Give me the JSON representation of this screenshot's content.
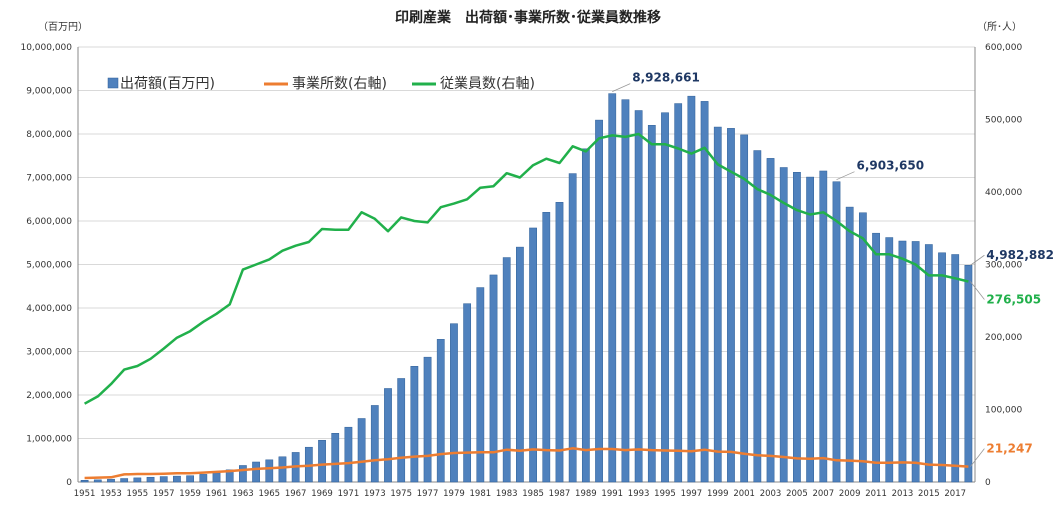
{
  "chart_data": {
    "type": "bar",
    "title": "印刷産業　出荷額･事業所数･従業員数推移",
    "y_left_unit": "（百万円）",
    "y_right_unit": "（所･人）",
    "y_left": {
      "min": 0,
      "max": 10000000,
      "step": 1000000
    },
    "y_right": {
      "min": 0,
      "max": 600000,
      "step": 100000
    },
    "x_tick_labels": [
      "1951",
      "1953",
      "1955",
      "1957",
      "1959",
      "1961",
      "1963",
      "1965",
      "1967",
      "1969",
      "1971",
      "1973",
      "1975",
      "1977",
      "1979",
      "1981",
      "1983",
      "1985",
      "1987",
      "1989",
      "1991",
      "1993",
      "1995",
      "1997",
      "1999",
      "2001",
      "2003",
      "2005",
      "2007",
      "2009",
      "2011",
      "2013",
      "2015",
      "2017"
    ],
    "x": [
      1951,
      1952,
      1953,
      1954,
      1955,
      1956,
      1957,
      1958,
      1959,
      1960,
      1961,
      1962,
      1963,
      1964,
      1965,
      1966,
      1967,
      1968,
      1969,
      1970,
      1971,
      1972,
      1973,
      1974,
      1975,
      1976,
      1977,
      1978,
      1979,
      1980,
      1981,
      1982,
      1983,
      1984,
      1985,
      1986,
      1987,
      1988,
      1989,
      1990,
      1991,
      1992,
      1993,
      1994,
      1995,
      1996,
      1997,
      1998,
      1999,
      2000,
      2001,
      2002,
      2003,
      2004,
      2005,
      2006,
      2007,
      2008,
      2009,
      2010,
      2011,
      2012,
      2013,
      2014,
      2015,
      2016,
      2017,
      2018
    ],
    "legend_placement": "top-left",
    "series": [
      {
        "name": "出荷額(百万円)",
        "kind": "bar",
        "axis": "left",
        "color": "#4f81bd",
        "values": [
          40000,
          50000,
          65000,
          80000,
          95000,
          110000,
          125000,
          135000,
          145000,
          175000,
          210000,
          280000,
          380000,
          460000,
          510000,
          580000,
          680000,
          800000,
          960000,
          1120000,
          1260000,
          1460000,
          1760000,
          2150000,
          2380000,
          2660000,
          2870000,
          3280000,
          3640000,
          4100000,
          4470000,
          4760000,
          5160000,
          5400000,
          5840000,
          6200000,
          6430000,
          7090000,
          7660000,
          8320000,
          8928661,
          8790000,
          8540000,
          8200000,
          8490000,
          8700000,
          8870000,
          8750000,
          8160000,
          8130000,
          7980000,
          7620000,
          7440000,
          7230000,
          7120000,
          7010000,
          7150000,
          6903650,
          6320000,
          6190000,
          5720000,
          5620000,
          5540000,
          5530000,
          5460000,
          5270000,
          5230000,
          4982882
        ]
      },
      {
        "name": "事業所数(右軸)",
        "kind": "line",
        "axis": "right",
        "color": "#ed7d31",
        "values": [
          5500,
          6000,
          6500,
          10500,
          11000,
          11000,
          11500,
          12000,
          12000,
          13000,
          14000,
          15000,
          16500,
          18000,
          19000,
          20000,
          21500,
          22500,
          24000,
          25000,
          26000,
          28000,
          30000,
          31500,
          33500,
          35000,
          36000,
          38500,
          40000,
          40500,
          41000,
          41000,
          44500,
          43000,
          45000,
          44000,
          43500,
          46500,
          44000,
          45500,
          45500,
          44000,
          45000,
          44000,
          43500,
          43000,
          42500,
          44500,
          42000,
          41500,
          39000,
          37000,
          36000,
          34500,
          32500,
          32000,
          33000,
          30000,
          29500,
          28500,
          26500,
          26500,
          27000,
          26500,
          24000,
          23500,
          22500,
          21247
        ]
      },
      {
        "name": "従業員数(右軸)",
        "kind": "line",
        "axis": "right",
        "color": "#21b04b",
        "values": [
          108000,
          118000,
          135000,
          155000,
          160000,
          170000,
          184000,
          199000,
          208000,
          221000,
          232000,
          245000,
          293000,
          300000,
          307000,
          319000,
          326000,
          331000,
          349000,
          348000,
          348000,
          372000,
          363000,
          346000,
          365000,
          360000,
          358000,
          379000,
          384000,
          390000,
          406000,
          408000,
          426000,
          420000,
          437000,
          446000,
          440000,
          463000,
          456000,
          474000,
          478000,
          476000,
          480000,
          466000,
          466000,
          460000,
          453000,
          461000,
          438000,
          428000,
          418000,
          404000,
          396000,
          385000,
          375000,
          369000,
          372000,
          360000,
          346000,
          336000,
          314000,
          314000,
          308000,
          300000,
          285000,
          285000,
          281000,
          276505
        ]
      }
    ],
    "annotations": [
      {
        "text": "8,928,661",
        "series": 0,
        "index": 40,
        "color": "#1f3864"
      },
      {
        "text": "6,903,650",
        "series": 0,
        "index": 57,
        "color": "#1f3864"
      },
      {
        "text": "4,982,882",
        "series": 0,
        "index": 67,
        "color": "#1f3864"
      },
      {
        "text": "276,505",
        "series": 2,
        "index": 67,
        "color": "#21b04b"
      },
      {
        "text": "21,247",
        "series": 1,
        "index": 67,
        "color": "#ed7d31"
      }
    ]
  }
}
